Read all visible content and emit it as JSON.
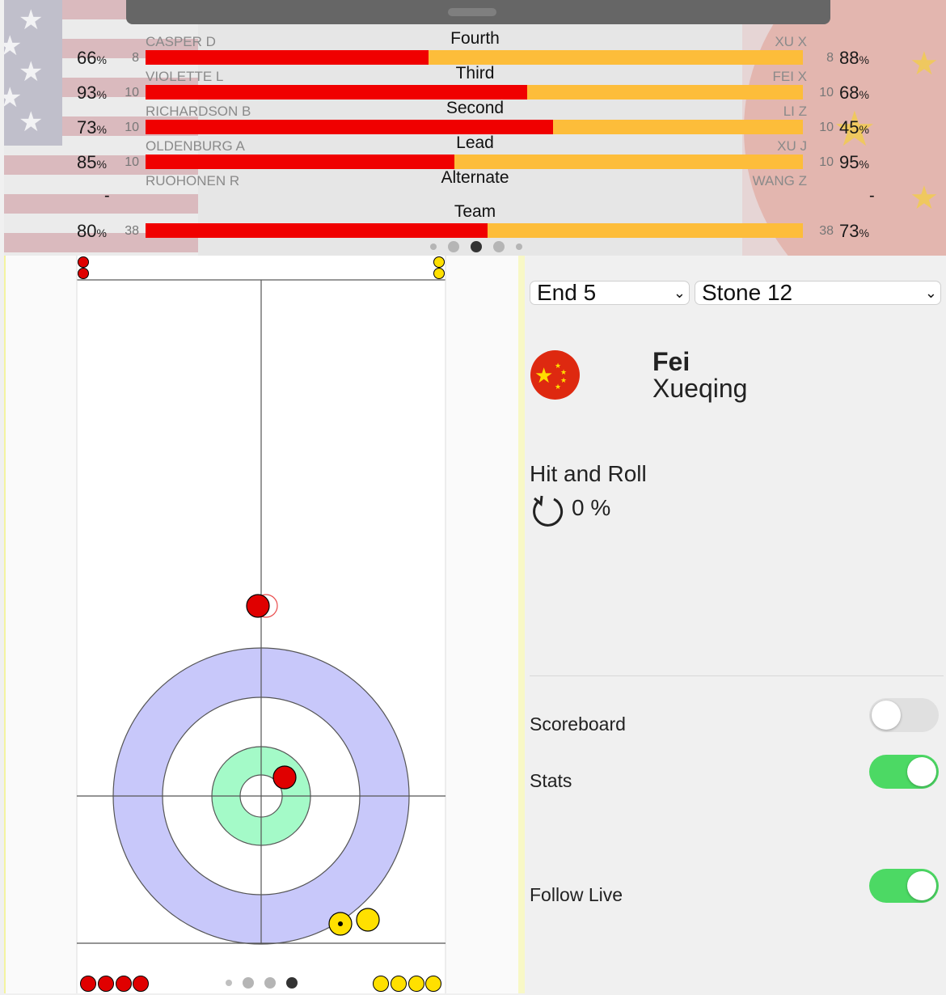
{
  "stats": {
    "rows": [
      {
        "position": "Fourth",
        "left_name": "CASPER D",
        "left_pct": "66",
        "left_shots": "8",
        "right_name": "XU X",
        "right_pct": "88",
        "right_shots": "8",
        "left_share": 0.43
      },
      {
        "position": "Third",
        "left_name": "VIOLETTE L",
        "left_pct": "93",
        "left_shots": "10",
        "right_name": "FEI X",
        "right_pct": "68",
        "right_shots": "10",
        "left_share": 0.58
      },
      {
        "position": "Second",
        "left_name": "RICHARDSON B",
        "left_pct": "73",
        "left_shots": "10",
        "right_name": "LI Z",
        "right_pct": "45",
        "right_shots": "10",
        "left_share": 0.62
      },
      {
        "position": "Lead",
        "left_name": "OLDENBURG A",
        "left_pct": "85",
        "left_shots": "10",
        "right_name": "XU J",
        "right_pct": "95",
        "right_shots": "10",
        "left_share": 0.47
      }
    ],
    "alternate": {
      "position": "Alternate",
      "left_name": "RUOHONEN R",
      "right_name": "WANG Z",
      "left_value": "-",
      "right_value": "-"
    },
    "team": {
      "position": "Team",
      "left_pct": "80",
      "left_shots": "38",
      "right_pct": "73",
      "right_shots": "38",
      "left_share": 0.52
    },
    "percent_sign": "%",
    "page_dots": 5,
    "active_dot": 2
  },
  "sheet": {
    "colors": {
      "red_stone": "#e00000",
      "yellow_stone": "#ffe000",
      "twelve_foot": "#c8c8fa",
      "four_foot": "#a4fac8"
    },
    "red_remaining": 4,
    "yellow_remaining": 4,
    "page_dots": 4,
    "active_dot": 3
  },
  "info": {
    "end_select": "End 5",
    "stone_select": "Stone 12",
    "first_name": "Fei",
    "last_name": "Xueqing",
    "shot_type": "Hit and Roll",
    "shot_percent": "0 %",
    "toggles": [
      {
        "label": "Scoreboard",
        "on": false
      },
      {
        "label": "Stats",
        "on": true
      },
      {
        "label": "Follow Live",
        "on": true
      }
    ]
  }
}
